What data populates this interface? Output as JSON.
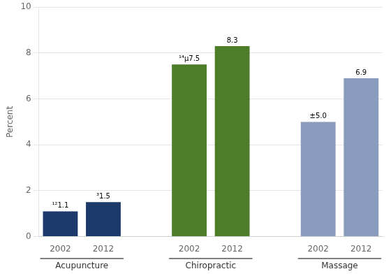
{
  "chart_data": {
    "type": "bar",
    "categories": [
      "2002",
      "2012"
    ],
    "series": [
      {
        "name": "Acupuncture",
        "color": "#1b3a6b",
        "values": [
          1.1,
          1.5
        ],
        "value_labels": [
          "¹²1.1",
          "³1.5"
        ]
      },
      {
        "name": "Chiropractic",
        "color": "#4e7d2a",
        "values": [
          7.5,
          8.3
        ],
        "value_labels": [
          "¹⁴µ7.5",
          "8.3"
        ]
      },
      {
        "name": "Massage",
        "color": "#8a9cbe",
        "values": [
          5.0,
          6.9
        ],
        "value_labels": [
          "±5.0",
          "6.9"
        ]
      }
    ],
    "ylabel": "Percent",
    "ylim": [
      0,
      10
    ],
    "yticks": [
      0,
      2,
      4,
      6,
      8,
      10
    ],
    "grid": true,
    "data_labels": true
  }
}
